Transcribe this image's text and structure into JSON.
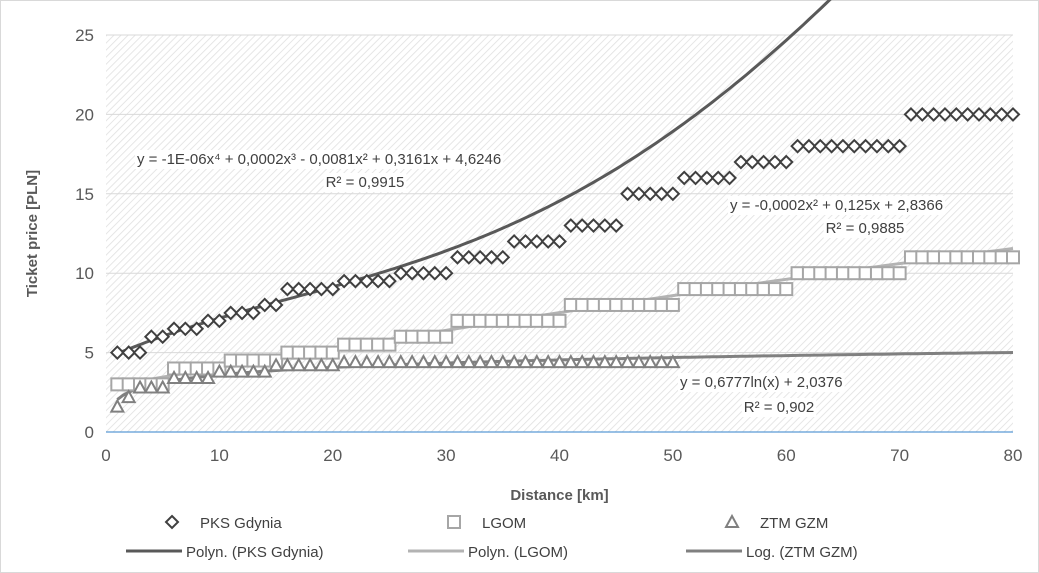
{
  "chart_data": {
    "type": "scatter",
    "title": "",
    "xlabel": "Distance [km]",
    "ylabel": "Ticket price [PLN]",
    "xlim": [
      0,
      80
    ],
    "ylim": [
      0,
      25
    ],
    "xticks": [
      "0",
      "10",
      "20",
      "30",
      "40",
      "50",
      "60",
      "70",
      "80"
    ],
    "yticks": [
      "0",
      "5",
      "10",
      "15",
      "20",
      "25"
    ],
    "grid": "horizontal",
    "plot_background": "diagonal hatch",
    "legend_position": "bottom",
    "series": [
      {
        "name": "PKS Gdynia",
        "marker": "diamond",
        "color": "#404040",
        "x": [
          1,
          2,
          3,
          4,
          5,
          6,
          7,
          8,
          9,
          10,
          11,
          12,
          13,
          14,
          15,
          16,
          17,
          18,
          19,
          20,
          21,
          22,
          23,
          24,
          25,
          26,
          27,
          28,
          29,
          30,
          31,
          32,
          33,
          34,
          35,
          36,
          37,
          38,
          39,
          40,
          41,
          42,
          43,
          44,
          45,
          46,
          47,
          48,
          49,
          50,
          51,
          52,
          53,
          54,
          55,
          56,
          57,
          58,
          59,
          60,
          61,
          62,
          63,
          64,
          65,
          66,
          67,
          68,
          69,
          70,
          71,
          72,
          73,
          74,
          75,
          76,
          77,
          78,
          79,
          80
        ],
        "y": [
          5,
          5,
          5,
          6,
          6,
          6.5,
          6.5,
          6.5,
          7,
          7,
          7.5,
          7.5,
          7.5,
          8,
          8,
          9,
          9,
          9,
          9,
          9,
          9.5,
          9.5,
          9.5,
          9.5,
          9.5,
          10,
          10,
          10,
          10,
          10,
          11,
          11,
          11,
          11,
          11,
          12,
          12,
          12,
          12,
          12,
          13,
          13,
          13,
          13,
          13,
          15,
          15,
          15,
          15,
          15,
          16,
          16,
          16,
          16,
          16,
          17,
          17,
          17,
          17,
          17,
          18,
          18,
          18,
          18,
          18,
          18,
          18,
          18,
          18,
          18,
          20,
          20,
          20,
          20,
          20,
          20,
          20,
          20,
          20,
          20
        ]
      },
      {
        "name": "LGOM",
        "marker": "square",
        "color": "#a6a6a6",
        "x": [
          1,
          2,
          3,
          4,
          5,
          6,
          7,
          8,
          9,
          10,
          11,
          12,
          13,
          14,
          15,
          16,
          17,
          18,
          19,
          20,
          21,
          22,
          23,
          24,
          25,
          26,
          27,
          28,
          29,
          30,
          31,
          32,
          33,
          34,
          35,
          36,
          37,
          38,
          39,
          40,
          41,
          42,
          43,
          44,
          45,
          46,
          47,
          48,
          49,
          50,
          51,
          52,
          53,
          54,
          55,
          56,
          57,
          58,
          59,
          60,
          61,
          62,
          63,
          64,
          65,
          66,
          67,
          68,
          69,
          70,
          71,
          72,
          73,
          74,
          75,
          76,
          77,
          78,
          79,
          80
        ],
        "y": [
          3,
          3,
          3,
          3,
          3,
          4,
          4,
          4,
          4,
          4,
          4.5,
          4.5,
          4.5,
          4.5,
          4.5,
          5,
          5,
          5,
          5,
          5,
          5.5,
          5.5,
          5.5,
          5.5,
          5.5,
          6,
          6,
          6,
          6,
          6,
          7,
          7,
          7,
          7,
          7,
          7,
          7,
          7,
          7,
          7,
          8,
          8,
          8,
          8,
          8,
          8,
          8,
          8,
          8,
          8,
          9,
          9,
          9,
          9,
          9,
          9,
          9,
          9,
          9,
          9,
          10,
          10,
          10,
          10,
          10,
          10,
          10,
          10,
          10,
          10,
          11,
          11,
          11,
          11,
          11,
          11,
          11,
          11,
          11,
          11
        ]
      },
      {
        "name": "ZTM GZM",
        "marker": "triangle",
        "color": "#808080",
        "x": [
          1,
          2,
          3,
          4,
          5,
          6,
          7,
          8,
          9,
          10,
          11,
          12,
          13,
          14,
          15,
          16,
          17,
          18,
          19,
          20,
          21,
          22,
          23,
          24,
          25,
          26,
          27,
          28,
          29,
          30,
          31,
          32,
          33,
          34,
          35,
          36,
          37,
          38,
          39,
          40,
          41,
          42,
          43,
          44,
          45,
          46,
          47,
          48,
          49,
          50
        ],
        "y": [
          1.6,
          2.2,
          2.8,
          2.8,
          2.8,
          3.4,
          3.4,
          3.4,
          3.4,
          3.8,
          3.8,
          3.8,
          3.8,
          3.8,
          4.2,
          4.2,
          4.2,
          4.2,
          4.2,
          4.2,
          4.4,
          4.4,
          4.4,
          4.4,
          4.4,
          4.4,
          4.4,
          4.4,
          4.4,
          4.4,
          4.4,
          4.4,
          4.4,
          4.4,
          4.4,
          4.4,
          4.4,
          4.4,
          4.4,
          4.4,
          4.4,
          4.4,
          4.4,
          4.4,
          4.4,
          4.4,
          4.4,
          4.4,
          4.4,
          4.4
        ]
      }
    ],
    "trendlines": [
      {
        "name": "Polyn. (PKS Gdynia)",
        "type": "polynomial",
        "coefficients": [
          4.6246,
          0.3161,
          -0.0081,
          0.0002,
          -1e-06
        ],
        "color": "#595959",
        "equation": "y = -1E-06x⁴ + 0,0002x³ - 0,0081x² + 0,3161x + 4,6246",
        "r2": "R² = 0,9915"
      },
      {
        "name": "Polyn. (LGOM)",
        "type": "polynomial",
        "coefficients": [
          2.8366,
          0.125,
          -0.0002
        ],
        "color": "#b3b3b3",
        "equation": "y = -0,0002x² + 0,125x + 2,8366",
        "r2": "R² = 0,9885"
      },
      {
        "name": "Log. (ZTM GZM)",
        "type": "logarithmic",
        "coefficients": [
          2.0376,
          0.6777
        ],
        "color": "#808080",
        "equation": "y = 0,6777ln(x) + 2,0376",
        "r2": "R² = 0,902"
      }
    ]
  }
}
